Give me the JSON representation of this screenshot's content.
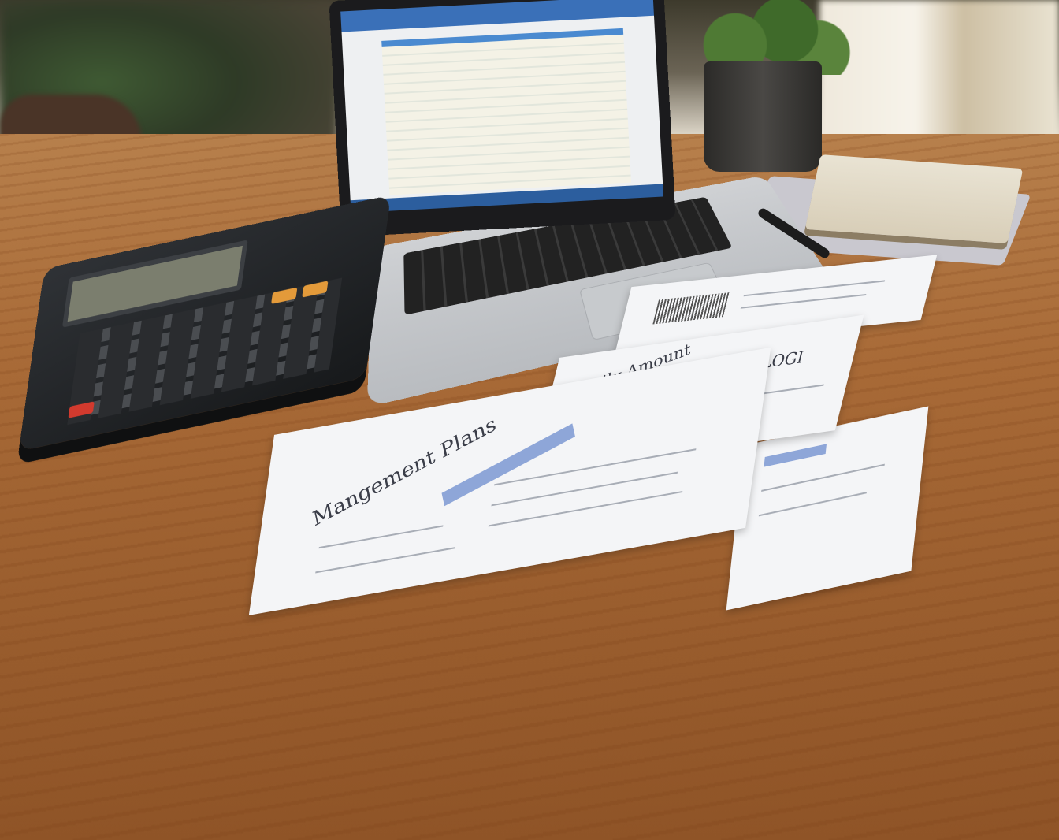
{
  "scene": {
    "description_objects": [
      "laptop",
      "calculator",
      "papers",
      "plant",
      "books",
      "pen"
    ],
    "colors": {
      "desk": "#a86a37",
      "paper": "#f4f5f7",
      "accent_blue": "#8ea6d8",
      "calculator": "#1f2124",
      "calc_red_key": "#d23a2e",
      "calc_orange_key": "#e39a3a"
    }
  },
  "papers": {
    "front_title": "Mangement Plans",
    "middle_title": "Family Amount",
    "middle_label": "LOGI"
  }
}
